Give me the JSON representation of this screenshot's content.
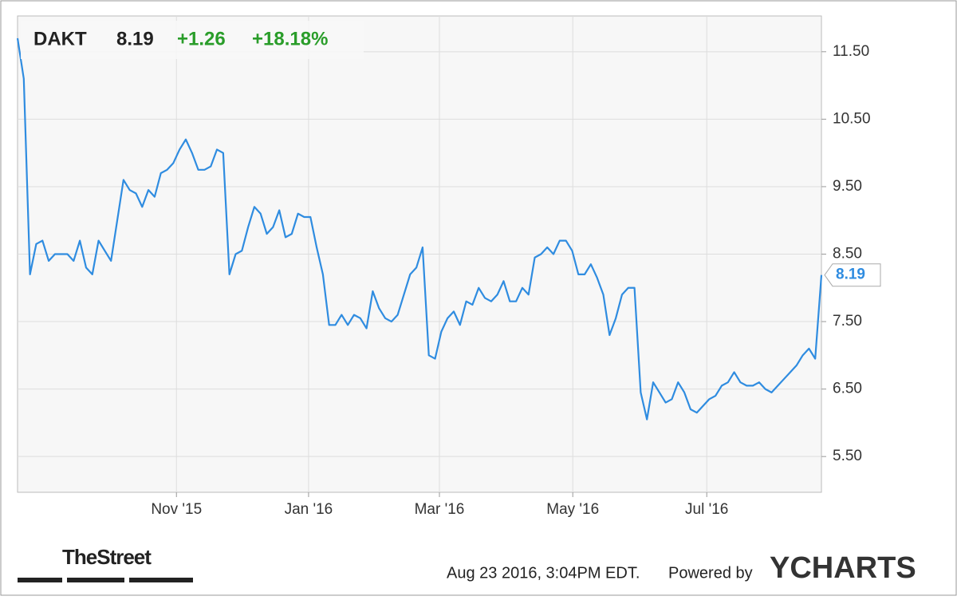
{
  "header": {
    "symbol": "DAKT",
    "price": "8.19",
    "change": "+1.26",
    "change_pct": "+18.18%"
  },
  "chart_data": {
    "type": "line",
    "color": "#2f8ce0",
    "grid": true,
    "values": [
      11.7,
      11.1,
      8.2,
      8.65,
      8.7,
      8.4,
      8.5,
      8.5,
      8.5,
      8.4,
      8.7,
      8.3,
      8.2,
      8.7,
      8.55,
      8.4,
      9.0,
      9.6,
      9.45,
      9.4,
      9.2,
      9.45,
      9.35,
      9.7,
      9.75,
      9.85,
      10.05,
      10.2,
      10.0,
      9.75,
      9.75,
      9.8,
      10.05,
      10.0,
      8.2,
      8.5,
      8.55,
      8.9,
      9.2,
      9.1,
      8.8,
      8.9,
      9.15,
      8.75,
      8.8,
      9.1,
      9.05,
      9.05,
      8.6,
      8.2,
      7.45,
      7.45,
      7.6,
      7.45,
      7.6,
      7.55,
      7.4,
      7.95,
      7.7,
      7.55,
      7.5,
      7.6,
      7.9,
      8.2,
      8.3,
      8.6,
      7.0,
      6.95,
      7.35,
      7.55,
      7.65,
      7.45,
      7.8,
      7.75,
      8.0,
      7.85,
      7.8,
      7.9,
      8.1,
      7.8,
      7.8,
      8.0,
      7.9,
      8.45,
      8.5,
      8.6,
      8.5,
      8.7,
      8.7,
      8.55,
      8.2,
      8.2,
      8.35,
      8.15,
      7.9,
      7.3,
      7.55,
      7.9,
      8.0,
      8.0,
      6.45,
      6.05,
      6.6,
      6.45,
      6.3,
      6.35,
      6.6,
      6.45,
      6.2,
      6.15,
      6.25,
      6.35,
      6.4,
      6.55,
      6.6,
      6.75,
      6.6,
      6.55,
      6.55,
      6.6,
      6.5,
      6.45,
      6.55,
      6.65,
      6.75,
      6.85,
      7.0,
      7.1,
      6.95,
      8.19
    ],
    "xlim": [
      0,
      129
    ],
    "xticks": [
      {
        "value": 25.5,
        "label": "Nov '15"
      },
      {
        "value": 46.7,
        "label": "Jan '16"
      },
      {
        "value": 67.7,
        "label": "Mar '16"
      },
      {
        "value": 89.1,
        "label": "May '16"
      },
      {
        "value": 110.6,
        "label": "Jul '16"
      }
    ],
    "ylim": [
      4.97,
      12.03
    ],
    "yticks": [
      {
        "value": 5.5,
        "label": "5.50"
      },
      {
        "value": 6.5,
        "label": "6.50"
      },
      {
        "value": 7.5,
        "label": "7.50"
      },
      {
        "value": 8.5,
        "label": "8.50"
      },
      {
        "value": 9.5,
        "label": "9.50"
      },
      {
        "value": 10.5,
        "label": "10.50"
      },
      {
        "value": 11.5,
        "label": "11.50"
      }
    ]
  },
  "footer": {
    "brand": "TheStreet",
    "timestamp": "Aug 23 2016, 3:04PM EDT.",
    "powered": "Powered by",
    "provider": "YCHARTS"
  }
}
